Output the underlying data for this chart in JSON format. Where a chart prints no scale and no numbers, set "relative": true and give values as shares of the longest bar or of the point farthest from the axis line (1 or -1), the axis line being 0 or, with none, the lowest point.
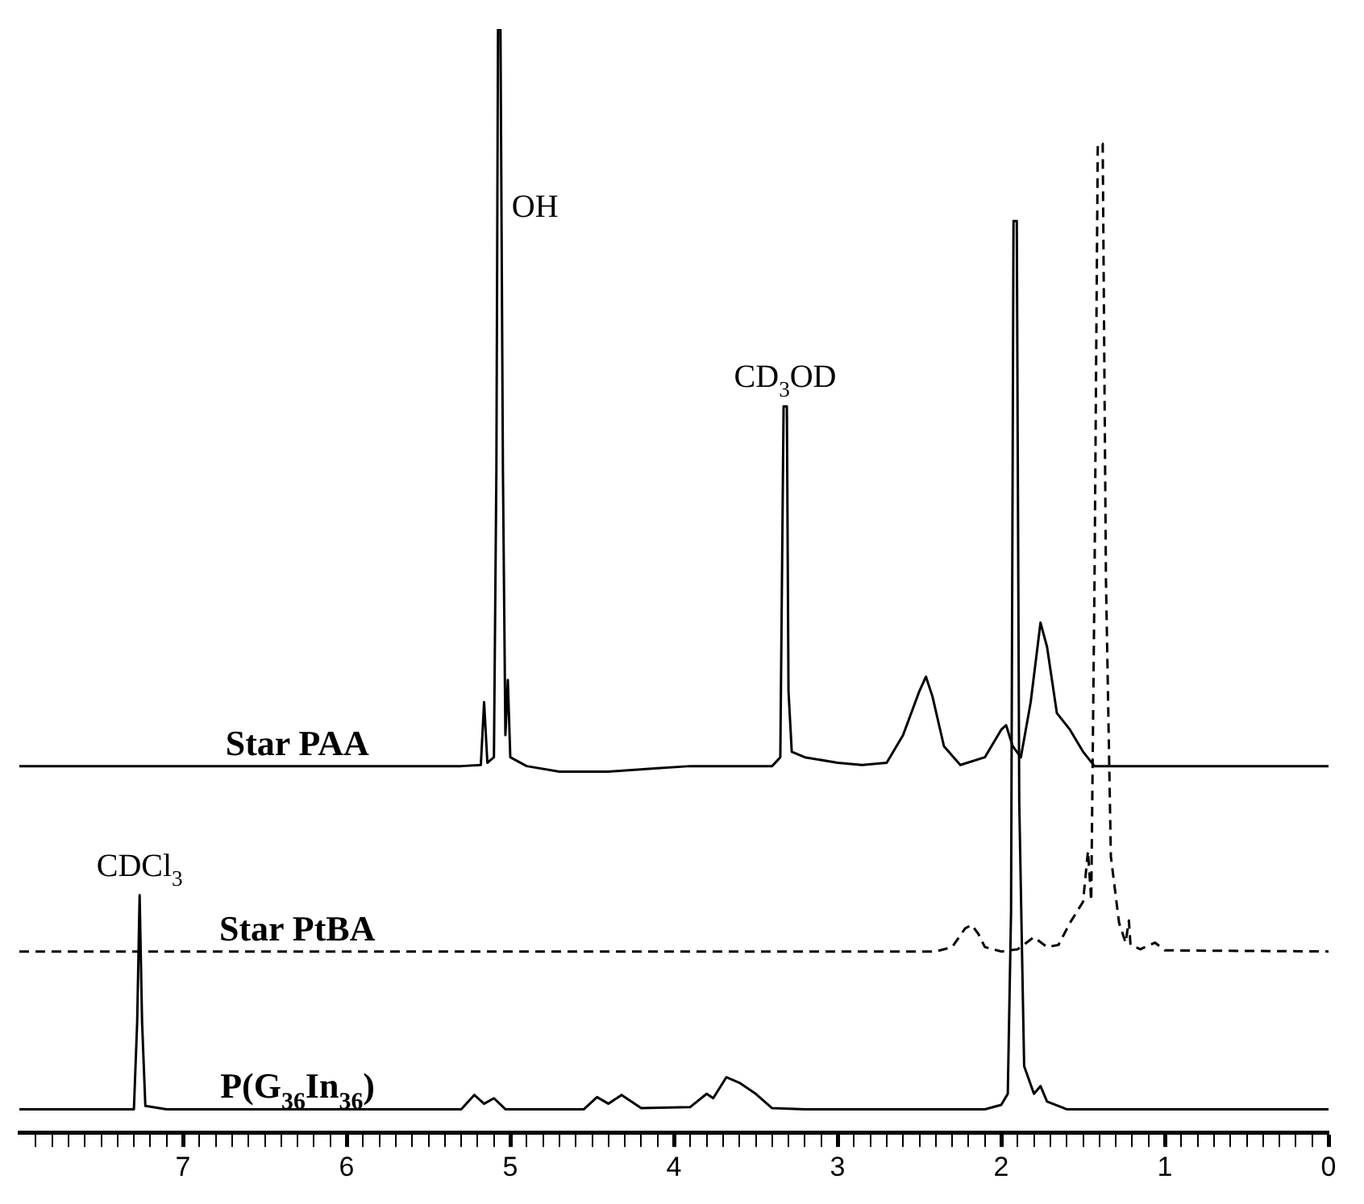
{
  "chart_data": {
    "type": "line",
    "relative": true,
    "legend": false,
    "grid": false,
    "tick_labels": "x",
    "xlim": [
      8,
      0
    ],
    "xticks": [
      {
        "value": 7.9,
        "label": null
      },
      {
        "value": 7.8,
        "label": null
      },
      {
        "value": 7.7,
        "label": null
      },
      {
        "value": 7.6,
        "label": null
      },
      {
        "value": 7.5,
        "label": null
      },
      {
        "value": 7.4,
        "label": null
      },
      {
        "value": 7.3,
        "label": null
      },
      {
        "value": 7.2,
        "label": null
      },
      {
        "value": 7.1,
        "label": null
      },
      7,
      {
        "value": 6.9,
        "label": null
      },
      {
        "value": 6.8,
        "label": null
      },
      {
        "value": 6.7,
        "label": null
      },
      {
        "value": 6.6,
        "label": null
      },
      {
        "value": 6.5,
        "label": null
      },
      {
        "value": 6.4,
        "label": null
      },
      {
        "value": 6.3,
        "label": null
      },
      {
        "value": 6.2,
        "label": null
      },
      {
        "value": 6.1,
        "label": null
      },
      6,
      {
        "value": 5.9,
        "label": null
      },
      {
        "value": 5.8,
        "label": null
      },
      {
        "value": 5.7,
        "label": null
      },
      {
        "value": 5.6,
        "label": null
      },
      {
        "value": 5.5,
        "label": null
      },
      {
        "value": 5.4,
        "label": null
      },
      {
        "value": 5.3,
        "label": null
      },
      {
        "value": 5.2,
        "label": null
      },
      {
        "value": 5.1,
        "label": null
      },
      5,
      {
        "value": 4.9,
        "label": null
      },
      {
        "value": 4.8,
        "label": null
      },
      {
        "value": 4.7,
        "label": null
      },
      {
        "value": 4.6,
        "label": null
      },
      {
        "value": 4.5,
        "label": null
      },
      {
        "value": 4.4,
        "label": null
      },
      {
        "value": 4.3,
        "label": null
      },
      {
        "value": 4.2,
        "label": null
      },
      {
        "value": 4.1,
        "label": null
      },
      4,
      {
        "value": 3.9,
        "label": null
      },
      {
        "value": 3.8,
        "label": null
      },
      {
        "value": 3.7,
        "label": null
      },
      {
        "value": 3.6,
        "label": null
      },
      {
        "value": 3.5,
        "label": null
      },
      {
        "value": 3.4,
        "label": null
      },
      {
        "value": 3.3,
        "label": null
      },
      {
        "value": 3.2,
        "label": null
      },
      {
        "value": 3.1,
        "label": null
      },
      3,
      {
        "value": 2.9,
        "label": null
      },
      {
        "value": 2.8,
        "label": null
      },
      {
        "value": 2.7,
        "label": null
      },
      {
        "value": 2.6,
        "label": null
      },
      {
        "value": 2.5,
        "label": null
      },
      {
        "value": 2.4,
        "label": null
      },
      {
        "value": 2.3,
        "label": null
      },
      {
        "value": 2.2,
        "label": null
      },
      {
        "value": 2.1,
        "label": null
      },
      2,
      {
        "value": 1.9,
        "label": null
      },
      {
        "value": 1.8,
        "label": null
      },
      {
        "value": 1.7,
        "label": null
      },
      {
        "value": 1.6,
        "label": null
      },
      {
        "value": 1.5,
        "label": null
      },
      {
        "value": 1.4,
        "label": null
      },
      {
        "value": 1.3,
        "label": null
      },
      {
        "value": 1.2,
        "label": null
      },
      {
        "value": 1.1,
        "label": null
      },
      1,
      {
        "value": 0.9,
        "label": null
      },
      {
        "value": 0.8,
        "label": null
      },
      {
        "value": 0.7,
        "label": null
      },
      {
        "value": 0.6,
        "label": null
      },
      {
        "value": 0.5,
        "label": null
      },
      {
        "value": 0.4,
        "label": null
      },
      {
        "value": 0.3,
        "label": null
      },
      {
        "value": 0.2,
        "label": null
      },
      {
        "value": 0.1,
        "label": null
      },
      0
    ],
    "series": [
      {
        "name": "Star PAA",
        "color": "#000000",
        "line_style": "solid",
        "x": [
          8.0,
          5.3,
          5.18,
          5.16,
          5.14,
          5.1,
          5.085,
          5.075,
          5.06,
          5.045,
          5.03,
          5.015,
          5.0,
          4.9,
          4.7,
          4.4,
          4.1,
          3.9,
          3.4,
          3.35,
          3.33,
          3.31,
          3.3,
          3.28,
          3.2,
          3.0,
          2.85,
          2.7,
          2.6,
          2.5,
          2.46,
          2.42,
          2.35,
          2.25,
          2.1,
          2.0,
          1.97,
          1.93,
          1.88,
          1.82,
          1.76,
          1.72,
          1.66,
          1.58,
          1.5,
          1.43,
          0.0
        ],
        "values": [
          0.332,
          0.332,
          0.333,
          0.39,
          0.335,
          0.34,
          0.6,
          1.0,
          1.0,
          0.6,
          0.36,
          0.41,
          0.34,
          0.332,
          0.327,
          0.327,
          0.33,
          0.332,
          0.332,
          0.34,
          0.658,
          0.658,
          0.4,
          0.345,
          0.34,
          0.335,
          0.333,
          0.335,
          0.36,
          0.4,
          0.413,
          0.395,
          0.35,
          0.333,
          0.34,
          0.365,
          0.369,
          0.35,
          0.34,
          0.39,
          0.462,
          0.44,
          0.38,
          0.365,
          0.345,
          0.332,
          0.332
        ]
      },
      {
        "name": "Star PtBA",
        "color": "#000000",
        "line_style": "dashed",
        "x": [
          8.0,
          2.4,
          2.3,
          2.22,
          2.18,
          2.14,
          2.1,
          2.0,
          1.9,
          1.8,
          1.72,
          1.65,
          1.58,
          1.5,
          1.47,
          1.45,
          1.43,
          1.41,
          1.38,
          1.36,
          1.33,
          1.28,
          1.24,
          1.22,
          1.21,
          1.15,
          1.06,
          1.0,
          0.0
        ],
        "values": [
          0.164,
          0.164,
          0.168,
          0.185,
          0.188,
          0.18,
          0.168,
          0.164,
          0.166,
          0.177,
          0.168,
          0.17,
          0.19,
          0.209,
          0.255,
          0.21,
          0.5,
          0.896,
          0.896,
          0.5,
          0.25,
          0.19,
          0.172,
          0.192,
          0.17,
          0.166,
          0.172,
          0.165,
          0.164
        ]
      },
      {
        "name": "P(G$_{36}$In$_{36}$)",
        "color": "#000000",
        "line_style": "solid",
        "x": [
          8.0,
          7.3,
          7.28,
          7.265,
          7.25,
          7.23,
          7.1,
          5.3,
          5.22,
          5.16,
          5.1,
          5.03,
          4.55,
          4.47,
          4.4,
          4.32,
          4.2,
          3.9,
          3.8,
          3.76,
          3.68,
          3.6,
          3.5,
          3.4,
          3.2,
          2.1,
          2.0,
          1.96,
          1.94,
          1.925,
          1.905,
          1.89,
          1.86,
          1.8,
          1.76,
          1.72,
          1.6,
          0.0
        ],
        "values": [
          0.021,
          0.021,
          0.1,
          0.215,
          0.1,
          0.024,
          0.021,
          0.021,
          0.034,
          0.026,
          0.031,
          0.021,
          0.021,
          0.032,
          0.026,
          0.034,
          0.022,
          0.023,
          0.035,
          0.031,
          0.05,
          0.045,
          0.035,
          0.022,
          0.021,
          0.021,
          0.025,
          0.035,
          0.2,
          0.826,
          0.826,
          0.3,
          0.06,
          0.035,
          0.042,
          0.028,
          0.021,
          0.021
        ]
      }
    ],
    "annotations": [
      {
        "text": "OH",
        "x": 5.07,
        "y": 0.84
      },
      {
        "text": "CD$_{3}$OD",
        "x": 3.32,
        "y": 0.658
      },
      {
        "text": "CDCl$_{3}$",
        "x": 7.265,
        "y": 0.215
      }
    ]
  }
}
